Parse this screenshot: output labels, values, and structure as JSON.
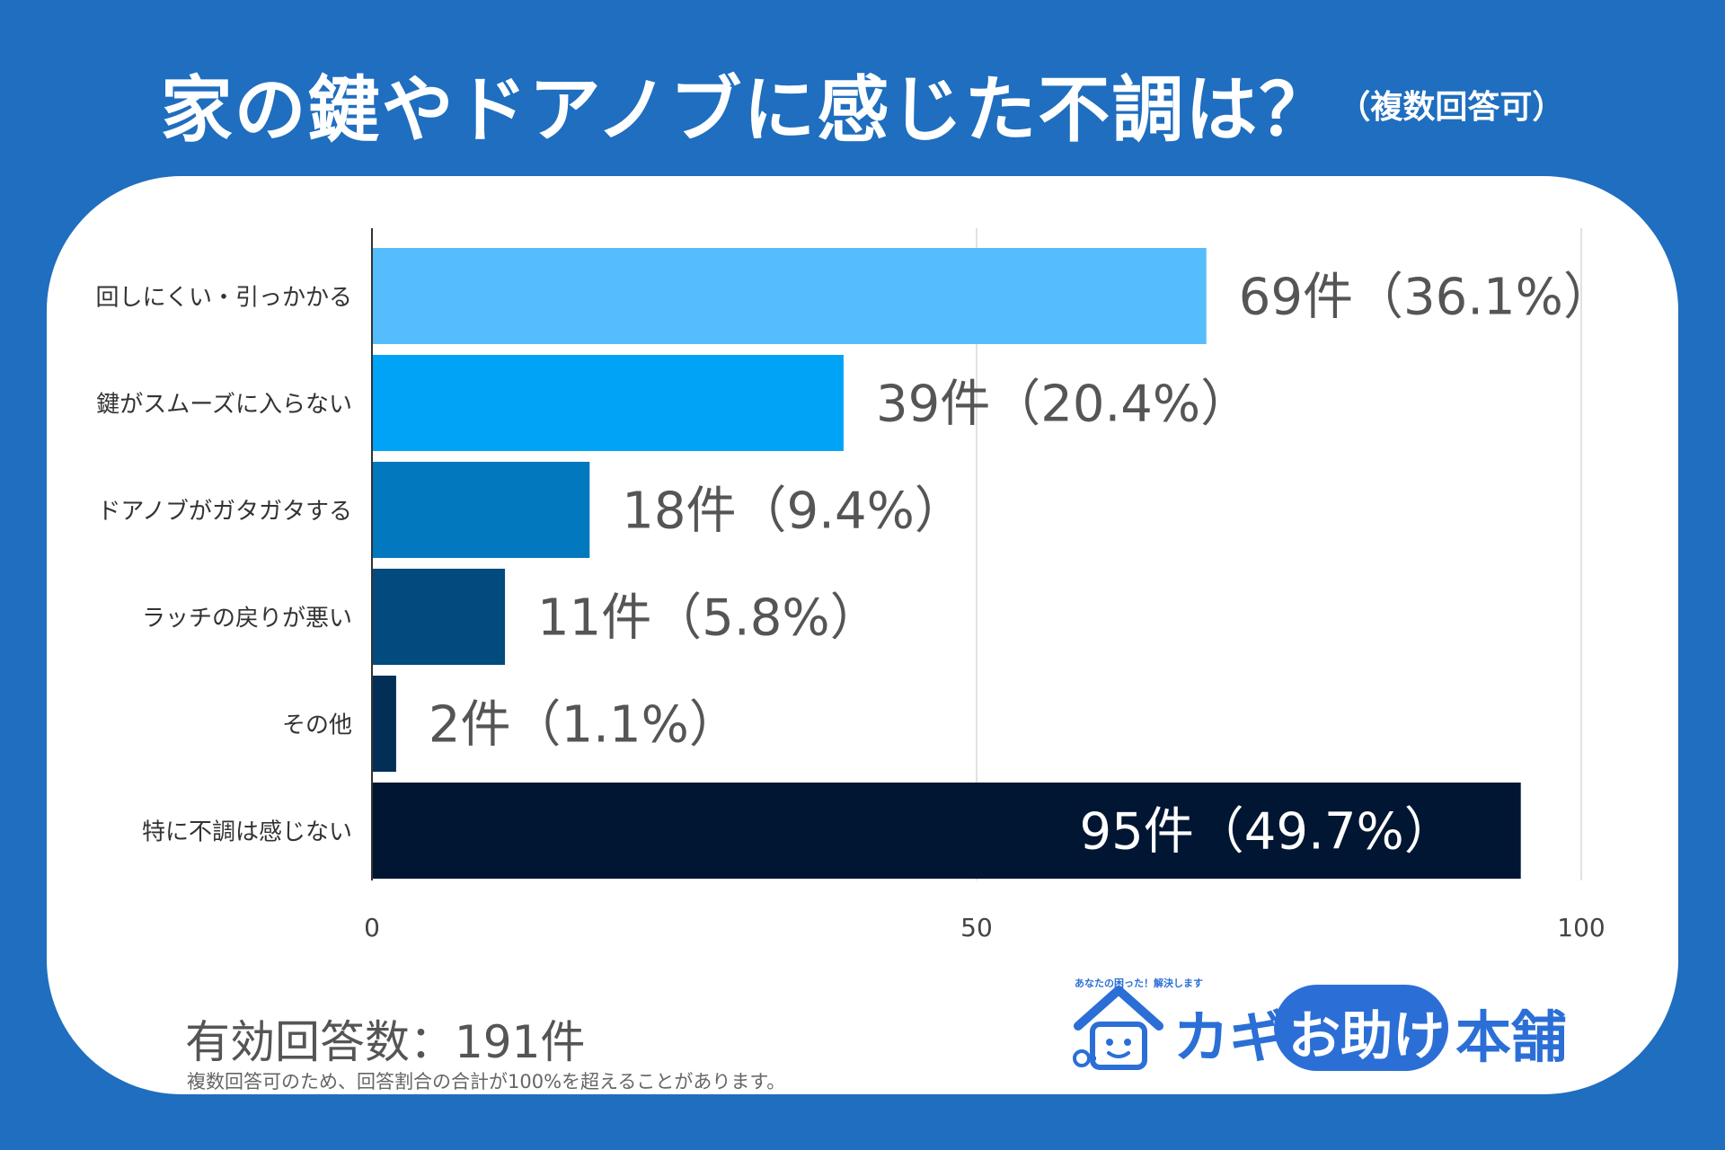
{
  "title": "家の鍵やドアノブに感じた不調は？",
  "subtitle": "（複数回答可）",
  "chart_data": {
    "type": "bar",
    "orientation": "horizontal",
    "categories": [
      "回しにくい・引っかかる",
      "鍵がスムーズに入らない",
      "ドアノブがガタガタする",
      "ラッチの戻りが悪い",
      "その他",
      "特に不調は感じない"
    ],
    "values": [
      69,
      39,
      18,
      11,
      2,
      95
    ],
    "data_labels": [
      "69件（36.1%）",
      "39件（20.4%）",
      "18件（9.4%）",
      "11件（5.8%）",
      "2件（1.1%）",
      "95件（49.7%）"
    ],
    "colors": [
      "#56bdfc",
      "#00a3f5",
      "#0278be",
      "#034a7e",
      "#032f57",
      "#011632"
    ],
    "xlim": [
      0,
      100
    ],
    "xticks": [
      0,
      50,
      100
    ],
    "grid": true,
    "legend": "none"
  },
  "footer": {
    "total": "有効回答数：191件",
    "note": "複数回答可のため、回答割合の合計が100%を超えることがあります。"
  },
  "logo": {
    "tagline": "あなたの困った！解決します",
    "kagi": "カギ",
    "otasuke": "お助け",
    "honpo": "本舗",
    "accent": "#2b6fd6"
  }
}
